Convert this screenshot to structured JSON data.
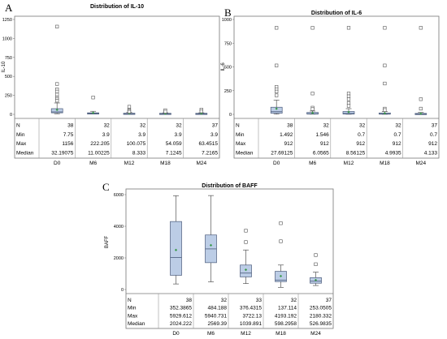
{
  "panels": [
    {
      "letter": "A"
    },
    {
      "letter": "B"
    },
    {
      "letter": "C"
    }
  ],
  "chart_data": [
    {
      "type": "box",
      "title": "Distribution of IL-10",
      "ylabel": "IL-10",
      "xlabel": "",
      "ylim": [
        0,
        1250
      ],
      "yticks": [
        "0",
        "250",
        "500",
        "750",
        "1000",
        "1250"
      ],
      "ytick_values": [
        0,
        250,
        500,
        750,
        1000,
        1250
      ],
      "categories": [
        "D0",
        "M6",
        "M12",
        "M18",
        "M24"
      ],
      "boxes": [
        {
          "q1": 20,
          "median": 32,
          "q3": 75,
          "whisker_low": 8,
          "whisker_high": 150,
          "mean": 60,
          "outliers": [
            1156,
            400,
            330,
            300,
            260,
            220,
            200,
            180
          ]
        },
        {
          "q1": 6,
          "median": 11,
          "q3": 20,
          "whisker_low": 4,
          "whisker_high": 40,
          "mean": 20,
          "outliers": [
            222
          ]
        },
        {
          "q1": 4,
          "median": 8,
          "q3": 15,
          "whisker_low": 4,
          "whisker_high": 25,
          "mean": 13,
          "outliers": [
            100,
            60,
            45,
            35
          ]
        },
        {
          "q1": 4,
          "median": 7,
          "q3": 14,
          "whisker_low": 4,
          "whisker_high": 20,
          "mean": 10,
          "outliers": [
            54,
            35
          ]
        },
        {
          "q1": 4,
          "median": 7,
          "q3": 14,
          "whisker_low": 4,
          "whisker_high": 20,
          "mean": 12,
          "outliers": [
            63,
            40
          ]
        }
      ],
      "table": {
        "row_labels": [
          "N",
          "Min",
          "Max",
          "Median"
        ],
        "rows": [
          [
            "38",
            "32",
            "32",
            "32",
            "37"
          ],
          [
            "7.75",
            "3.9",
            "3.9",
            "3.9",
            "3.9"
          ],
          [
            "1156",
            "222.205",
            "100.075",
            "54.059",
            "63.4515"
          ],
          [
            "32.19075",
            "11.00225",
            "8.333",
            "7.1245",
            "7.2165"
          ]
        ]
      }
    },
    {
      "type": "box",
      "title": "Distribution of IL-6",
      "ylabel": "IL-6",
      "xlabel": "",
      "ylim": [
        0,
        1000
      ],
      "yticks": [
        "0",
        "250",
        "500",
        "750",
        "1000"
      ],
      "ytick_values": [
        0,
        250,
        500,
        750,
        1000
      ],
      "categories": [
        "D0",
        "M6",
        "M12",
        "M18",
        "M24"
      ],
      "boxes": [
        {
          "q1": 12,
          "median": 28,
          "q3": 75,
          "whisker_low": 2,
          "whisker_high": 150,
          "mean": 60,
          "outliers": [
            912,
            515,
            290,
            265,
            240,
            200
          ]
        },
        {
          "q1": 3,
          "median": 6,
          "q3": 20,
          "whisker_low": 2,
          "whisker_high": 35,
          "mean": 15,
          "outliers": [
            912,
            220,
            70,
            55
          ]
        },
        {
          "q1": 3,
          "median": 9,
          "q3": 30,
          "whisker_low": 1,
          "whisker_high": 60,
          "mean": 25,
          "outliers": [
            912,
            220,
            190,
            160,
            120,
            90
          ]
        },
        {
          "q1": 2,
          "median": 5,
          "q3": 15,
          "whisker_low": 1,
          "whisker_high": 30,
          "mean": 12,
          "outliers": [
            912,
            515,
            325,
            60,
            45
          ]
        },
        {
          "q1": 2,
          "median": 4,
          "q3": 10,
          "whisker_low": 1,
          "whisker_high": 20,
          "mean": 8,
          "outliers": [
            912,
            160,
            60
          ]
        }
      ],
      "table": {
        "row_labels": [
          "N",
          "Min",
          "Max",
          "Median"
        ],
        "rows": [
          [
            "38",
            "32",
            "32",
            "32",
            "37"
          ],
          [
            "1.492",
            "1.546",
            "0.7",
            "0.7",
            "0.7"
          ],
          [
            "912",
            "912",
            "912",
            "912",
            "912"
          ],
          [
            "27.69125",
            "6.0565",
            "8.56125",
            "4.9935",
            "4.133"
          ]
        ]
      }
    },
    {
      "type": "box",
      "title": "Distribution of BAFF",
      "ylabel": "BAFF",
      "xlabel": "",
      "ylim": [
        0,
        6000
      ],
      "yticks": [
        "0",
        "2000",
        "4000",
        "6000"
      ],
      "ytick_values": [
        0,
        2000,
        4000,
        6000
      ],
      "categories": [
        "D0",
        "M6",
        "M12",
        "M18",
        "M24"
      ],
      "boxes": [
        {
          "q1": 900,
          "median": 2024,
          "q3": 4300,
          "whisker_low": 352,
          "whisker_high": 5930,
          "mean": 2500,
          "outliers": []
        },
        {
          "q1": 1700,
          "median": 2569,
          "q3": 3450,
          "whisker_low": 484,
          "whisker_high": 5941,
          "mean": 2800,
          "outliers": []
        },
        {
          "q1": 800,
          "median": 1040,
          "q3": 1550,
          "whisker_low": 376,
          "whisker_high": 2500,
          "mean": 1250,
          "outliers": [
            3722,
            3000
          ]
        },
        {
          "q1": 500,
          "median": 598,
          "q3": 1150,
          "whisker_low": 137,
          "whisker_high": 1550,
          "mean": 850,
          "outliers": [
            4193,
            3050
          ]
        },
        {
          "q1": 400,
          "median": 527,
          "q3": 750,
          "whisker_low": 253,
          "whisker_high": 1100,
          "mean": 600,
          "outliers": [
            2180,
            1600
          ]
        }
      ],
      "table": {
        "row_labels": [
          "N",
          "Min",
          "Max",
          "Median"
        ],
        "rows": [
          [
            "38",
            "32",
            "33",
            "32",
            "37"
          ],
          [
            "352.3865",
            "484.188",
            "376.4315",
            "137.114",
            "253.0505"
          ],
          [
            "5929.612",
            "5940.731",
            "3722.13",
            "4193.192",
            "2180.332"
          ],
          [
            "2024.222",
            "2569.39",
            "1039.891",
            "598.2958",
            "526.9835"
          ]
        ]
      }
    }
  ]
}
